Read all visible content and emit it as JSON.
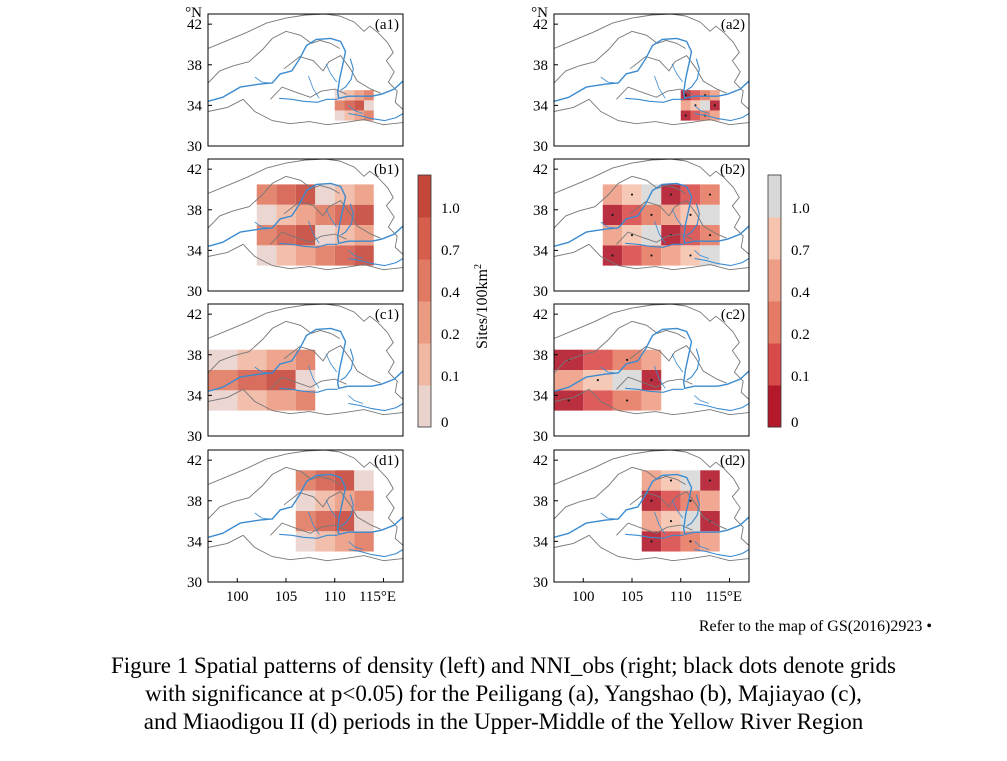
{
  "panels": [
    {
      "label": "(a1)",
      "kind": "density",
      "lon_edges": [
        110.0,
        111.0,
        112.0,
        113.0,
        114.0
      ],
      "lat_edges": [
        32.5,
        33.5,
        34.5,
        35.5
      ]
    },
    {
      "label": "(a2)",
      "kind": "nni",
      "lon_edges": [
        110.0,
        111.0,
        112.0,
        113.0,
        114.0
      ],
      "lat_edges": [
        32.5,
        33.5,
        34.5,
        35.5
      ]
    },
    {
      "label": "(b1)",
      "kind": "density",
      "lon_edges": [
        102.0,
        104.0,
        106.0,
        108.0,
        110.0,
        112.0,
        114.0
      ],
      "lat_edges": [
        32.5,
        34.5,
        36.5,
        38.5,
        40.5
      ]
    },
    {
      "label": "(b2)",
      "kind": "nni",
      "lon_edges": [
        102.0,
        104.0,
        106.0,
        108.0,
        110.0,
        112.0,
        114.0
      ],
      "lat_edges": [
        32.5,
        34.5,
        36.5,
        38.5,
        40.5
      ]
    },
    {
      "label": "(c1)",
      "kind": "density",
      "lon_edges": [
        97.0,
        100.0,
        103.0,
        106.0,
        108.0
      ],
      "lat_edges": [
        32.5,
        34.5,
        36.5,
        38.5
      ]
    },
    {
      "label": "(c2)",
      "kind": "nni",
      "lon_edges": [
        97.0,
        100.0,
        103.0,
        106.0,
        108.0
      ],
      "lat_edges": [
        32.5,
        34.5,
        36.5,
        38.5
      ]
    },
    {
      "label": "(d1)",
      "kind": "density",
      "lon_edges": [
        106.0,
        108.0,
        110.0,
        112.0,
        114.0
      ],
      "lat_edges": [
        33.0,
        35.0,
        37.0,
        39.0,
        41.0
      ]
    },
    {
      "label": "(d2)",
      "kind": "nni",
      "lon_edges": [
        106.0,
        108.0,
        110.0,
        112.0,
        114.0
      ],
      "lat_edges": [
        33.0,
        35.0,
        37.0,
        39.0,
        41.0
      ]
    }
  ],
  "axes": {
    "lat_unit": "°N",
    "lat_ticks": [
      30,
      34,
      38,
      42
    ],
    "lat_tick_labels": [
      "30",
      "34",
      "38",
      "42"
    ],
    "lon_ticks": [
      100,
      105,
      110,
      115
    ],
    "lon_tick_labels": [
      "100",
      "105",
      "110",
      "115°E"
    ],
    "lon_range": [
      97,
      117
    ],
    "lat_range": [
      30,
      43
    ]
  },
  "colorbars": [
    {
      "name": "density",
      "label": "Sites/100km",
      "label_sup": "2",
      "tick_labels": [
        "0",
        "0.1",
        "0.2",
        "0.4",
        "0.7",
        "1.0"
      ],
      "stops": [
        "#ead2cd",
        "#f0b8a3",
        "#eb9b82",
        "#e07a62",
        "#d55e4c",
        "#c5473a"
      ]
    },
    {
      "name": "nni",
      "label": "",
      "label_sup": "",
      "tick_labels": [
        "0",
        "0.1",
        "0.2",
        "0.4",
        "0.7",
        "1.0"
      ],
      "stops": [
        "#b3192b",
        "#d94a4a",
        "#e57b64",
        "#ee9e86",
        "#f5c3ae",
        "#d8d8d8"
      ]
    }
  ],
  "source_note": "Refer to the map of GS(2016)2923",
  "source_note_mark": "•",
  "caption_lines": [
    "Figure 1 Spatial patterns of density (left) and NNI_obs (right; black dots denote grids",
    "with significance at p<0.05) for the Peiligang (a), Yangshao (b), Majiayao (c),",
    "and Miaodigou II (d) periods in the Upper-Middle of the Yellow River Region"
  ],
  "colors": {
    "river": "#3b8bd0",
    "boundary": "#777777",
    "frame": "#000000"
  }
}
